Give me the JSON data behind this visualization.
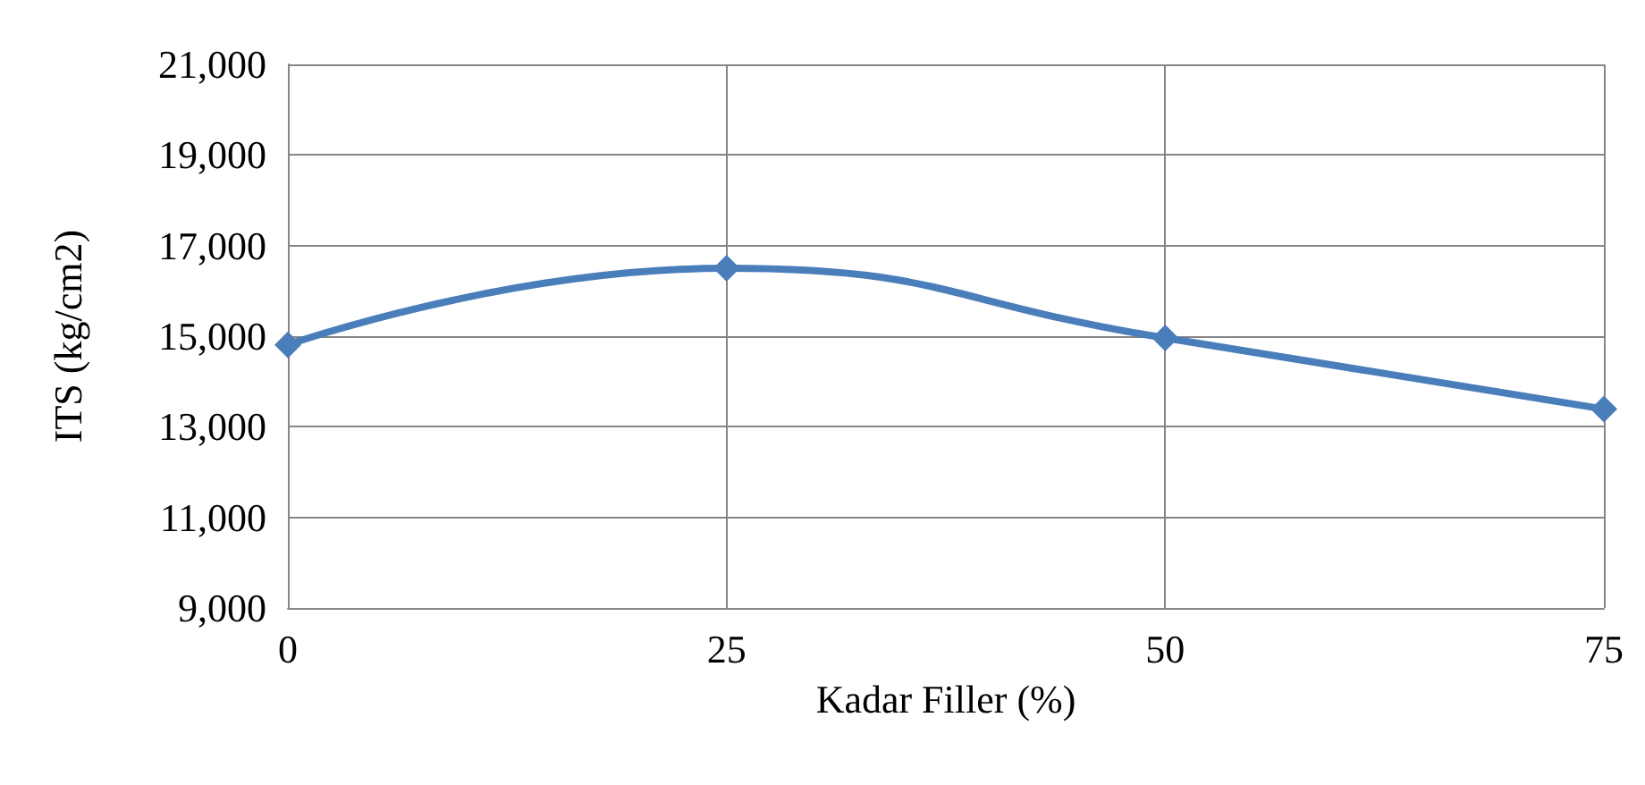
{
  "chart_data": {
    "type": "line",
    "xlabel": "Kadar Filler (%)",
    "ylabel": "ITS (kg/cm2)",
    "x": [
      0,
      25,
      50,
      75
    ],
    "series": [
      {
        "color": "#4a7ebb",
        "values": [
          14810,
          16500,
          14960,
          13390
        ]
      }
    ],
    "xlim": [
      0,
      75
    ],
    "xticks": [
      0,
      25,
      50,
      75
    ],
    "ylim": [
      9000,
      21000
    ],
    "yticks": [
      {
        "value": 9000,
        "label": "9,000"
      },
      {
        "value": 11000,
        "label": "11,000"
      },
      {
        "value": 13000,
        "label": "13,000"
      },
      {
        "value": 15000,
        "label": "15,000"
      },
      {
        "value": 17000,
        "label": "17,000"
      },
      {
        "value": 19000,
        "label": "19,000"
      },
      {
        "value": 21000,
        "label": "21,000"
      }
    ],
    "grid": true,
    "marker": "diamond",
    "line_style": "solid"
  }
}
